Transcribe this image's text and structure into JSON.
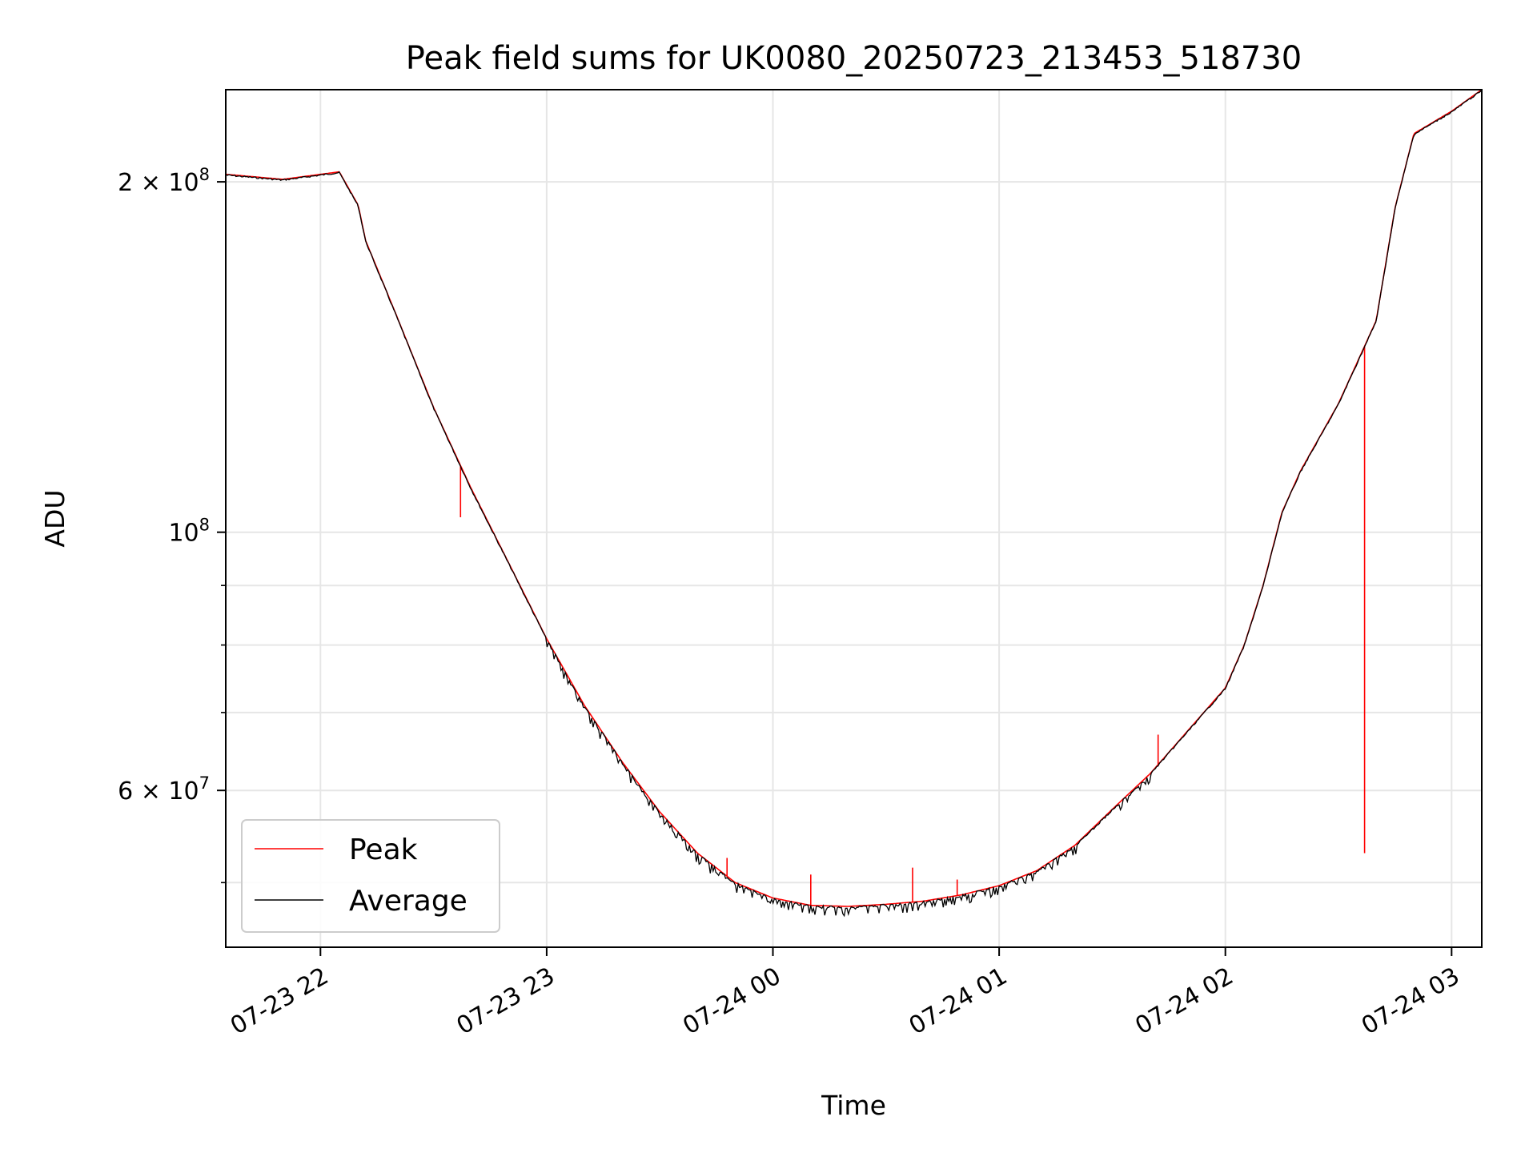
{
  "chart_data": {
    "type": "line",
    "title": "Peak field sums for UK0080_20250723_213453_518730",
    "xlabel": "Time",
    "ylabel": "ADU",
    "y_scale": "log",
    "ylim": [
      44000000,
      240000000
    ],
    "xlim": [
      "07-23 21:34:53",
      "07-24 03:08"
    ],
    "grid": true,
    "legend_position": "lower-left",
    "x_ticks": [
      {
        "time": "07-23 22:00",
        "label": "07-23 22"
      },
      {
        "time": "07-23 23:00",
        "label": "07-23 23"
      },
      {
        "time": "07-24 00:00",
        "label": "07-24 00"
      },
      {
        "time": "07-24 01:00",
        "label": "07-24 01"
      },
      {
        "time": "07-24 02:00",
        "label": "07-24 02"
      },
      {
        "time": "07-24 03:00",
        "label": "07-24 03"
      }
    ],
    "y_major_ticks": [
      {
        "value": 60000000,
        "label": "6 × 10",
        "exp": "7"
      },
      {
        "value": 100000000,
        "label": "10",
        "exp": "8"
      },
      {
        "value": 200000000,
        "label": "2 × 10",
        "exp": "8"
      }
    ],
    "y_minor_ticks": [
      50000000,
      70000000,
      80000000,
      90000000
    ],
    "x": [
      "07-23 21:35",
      "07-23 21:50",
      "07-23 22:00",
      "07-23 22:05",
      "07-23 22:10",
      "07-23 22:12",
      "07-23 22:20",
      "07-23 22:30",
      "07-23 22:40",
      "07-23 22:50",
      "07-23 23:00",
      "07-23 23:10",
      "07-23 23:20",
      "07-23 23:30",
      "07-23 23:40",
      "07-23 23:50",
      "07-24 00:00",
      "07-24 00:10",
      "07-24 00:20",
      "07-24 00:30",
      "07-24 00:40",
      "07-24 00:50",
      "07-24 01:00",
      "07-24 01:10",
      "07-24 01:20",
      "07-24 01:30",
      "07-24 01:40",
      "07-24 01:50",
      "07-24 02:00",
      "07-24 02:05",
      "07-24 02:10",
      "07-24 02:15",
      "07-24 02:20",
      "07-24 02:30",
      "07-24 02:40",
      "07-24 02:45",
      "07-24 02:50",
      "07-24 03:00",
      "07-24 03:08"
    ],
    "series": [
      {
        "name": "Peak",
        "color": "#ff0000",
        "values": [
          203000000,
          201000000,
          203000000,
          204000000,
          191000000,
          178000000,
          154000000,
          128000000,
          109000000,
          94000000,
          81000000,
          71000000,
          63500000,
          57500000,
          53000000,
          50000000,
          48500000,
          47800000,
          47700000,
          47900000,
          48200000,
          48800000,
          49700000,
          51200000,
          53800000,
          57800000,
          62000000,
          67500000,
          73500000,
          80000000,
          90000000,
          104000000,
          113000000,
          129000000,
          152000000,
          190000000,
          220000000,
          230000000,
          240000000
        ],
        "spikes": [
          {
            "x": "07-24 02:37",
            "value": 53000000
          },
          {
            "x": "07-23 23:48",
            "value": 52500000
          },
          {
            "x": "07-24 00:10",
            "value": 50800000
          },
          {
            "x": "07-24 00:37",
            "value": 51500000
          },
          {
            "x": "07-24 00:49",
            "value": 50300000
          },
          {
            "x": "07-24 01:42",
            "value": 67000000
          },
          {
            "x": "07-23 22:37",
            "value": 103000000
          }
        ]
      },
      {
        "name": "Average",
        "color": "#000000",
        "values": [
          203000000,
          201000000,
          203000000,
          204000000,
          191000000,
          178000000,
          154000000,
          128000000,
          109000000,
          94000000,
          81000000,
          71000000,
          63500000,
          57500000,
          53000000,
          50000000,
          48500000,
          47800000,
          47700000,
          47900000,
          48200000,
          48800000,
          49700000,
          51200000,
          53800000,
          57800000,
          62000000,
          67500000,
          73500000,
          80000000,
          90000000,
          104000000,
          113000000,
          129000000,
          152000000,
          190000000,
          220000000,
          230000000,
          240000000
        ]
      }
    ]
  }
}
